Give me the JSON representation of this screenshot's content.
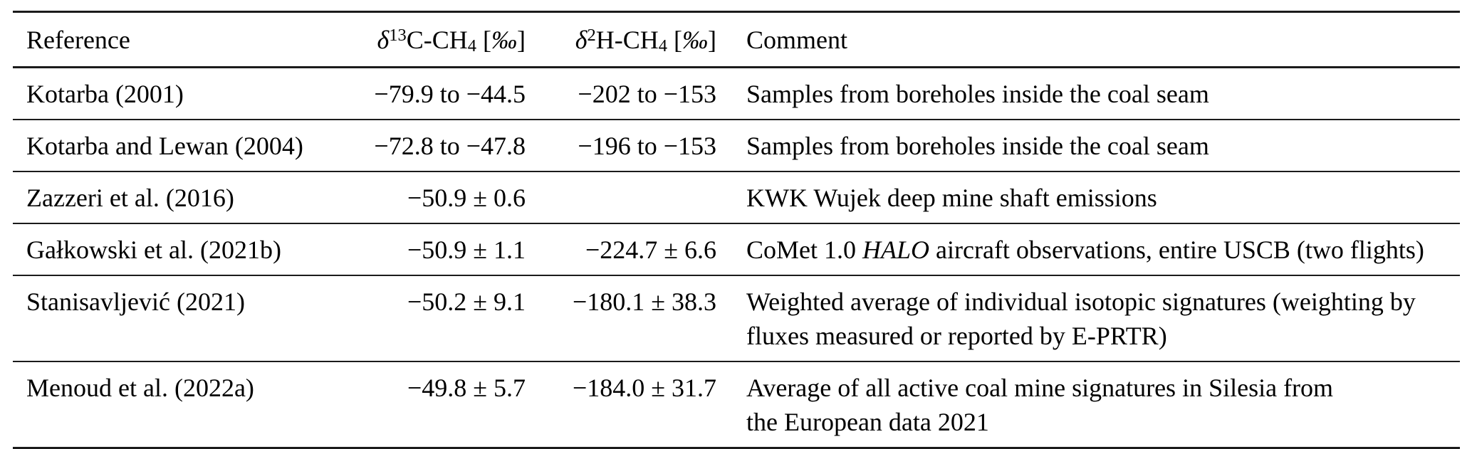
{
  "table": {
    "header": {
      "reference": "Reference",
      "c13": {
        "delta": "δ",
        "sup": "13",
        "base": "C-CH",
        "sub": "4",
        "open": " [",
        "permil": "‰",
        "close": "]"
      },
      "h2": {
        "delta": "δ",
        "sup": "2",
        "base": "H-CH",
        "sub": "4",
        "open": " [",
        "permil": "‰",
        "close": "]"
      },
      "comment": "Comment"
    },
    "rows": [
      {
        "reference": "Kotarba (2001)",
        "c13": "−79.9 to −44.5",
        "h2": "−202 to −153",
        "comment": [
          [
            {
              "t": "Samples from boreholes inside the coal seam"
            }
          ]
        ]
      },
      {
        "reference": "Kotarba and Lewan (2004)",
        "c13": "−72.8 to −47.8",
        "h2": "−196 to −153",
        "comment": [
          [
            {
              "t": "Samples from boreholes inside the coal seam"
            }
          ]
        ]
      },
      {
        "reference": "Zazzeri et al. (2016)",
        "c13": "−50.9 ± 0.6",
        "h2": "",
        "comment": [
          [
            {
              "t": "KWK Wujek deep mine shaft emissions"
            }
          ]
        ]
      },
      {
        "reference": "Gałkowski et al. (2021b)",
        "c13": "−50.9 ± 1.1",
        "h2": "−224.7 ± 6.6",
        "comment": [
          [
            {
              "t": "CoMet 1.0 "
            },
            {
              "t": "HALO",
              "i": true
            },
            {
              "t": " aircraft observations, entire USCB (two flights)"
            }
          ]
        ]
      },
      {
        "reference": "Stanisavljević (2021)",
        "c13": "−50.2 ± 9.1",
        "h2": "−180.1 ± 38.3",
        "comment": [
          [
            {
              "t": "Weighted average of individual isotopic signatures (weighting by"
            }
          ],
          [
            {
              "t": "fluxes measured or reported by E-PRTR)"
            }
          ]
        ]
      },
      {
        "reference": "Menoud et al. (2022a)",
        "c13": "−49.8 ± 5.7",
        "h2": "−184.0 ± 31.7",
        "comment": [
          [
            {
              "t": "Average of all active coal mine signatures in Silesia from"
            }
          ],
          [
            {
              "t": "the European data 2021"
            }
          ]
        ]
      }
    ],
    "rule_color": "#1b1b1b",
    "text_color": "#000000"
  }
}
